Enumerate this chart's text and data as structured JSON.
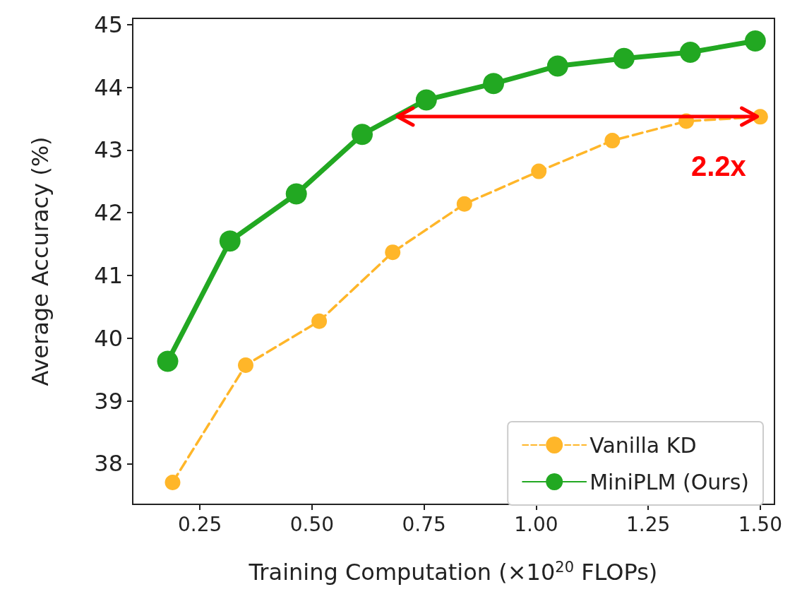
{
  "chart_data": {
    "type": "line",
    "xlabel": "Training Computation (×10$^{20}$ FLOPs)",
    "ylabel": "Average Accuracy (%)",
    "xlim": [
      0.1,
      1.53
    ],
    "xticks": [
      {
        "value": 0.25,
        "label": "0.25"
      },
      {
        "value": 0.5,
        "label": "0.50"
      },
      {
        "value": 0.75,
        "label": "0.75"
      },
      {
        "value": 1.0,
        "label": "1.00"
      },
      {
        "value": 1.25,
        "label": "1.25"
      },
      {
        "value": 1.5,
        "label": "1.50"
      }
    ],
    "ylim": [
      37.35,
      45.1
    ],
    "yticks": [
      38,
      39,
      40,
      41,
      42,
      43,
      44,
      45
    ],
    "grid": false,
    "legend": "bottom right",
    "marker": "circle",
    "series": [
      {
        "name": "Vanilla KD",
        "color": "#ffb629",
        "line_style": "dashed",
        "x": [
          0.189,
          0.352,
          0.516,
          0.68,
          0.84,
          1.006,
          1.17,
          1.335,
          1.5
        ],
        "values": [
          37.7,
          39.57,
          40.27,
          41.37,
          42.14,
          42.66,
          43.15,
          43.46,
          43.53
        ]
      },
      {
        "name": "MiniPLM (Ours)",
        "color": "#22a822",
        "line_style": "solid",
        "x": [
          0.178,
          0.317,
          0.465,
          0.612,
          0.755,
          0.905,
          1.048,
          1.196,
          1.344,
          1.489
        ],
        "values": [
          39.63,
          41.55,
          42.3,
          43.25,
          43.8,
          44.06,
          44.34,
          44.46,
          44.56,
          44.74
        ]
      }
    ],
    "annotations": [
      "2.2x"
    ]
  }
}
